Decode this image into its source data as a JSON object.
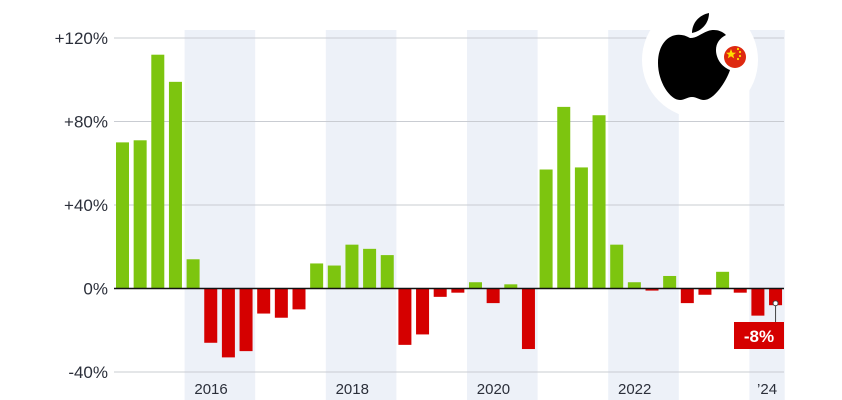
{
  "chart_data": {
    "type": "bar",
    "title": "",
    "xlabel": "",
    "ylabel": "",
    "ylim": [
      -40,
      120
    ],
    "yticks": [
      -40,
      0,
      40,
      80,
      120
    ],
    "ytick_labels": [
      "-40%",
      "0%",
      "+40%",
      "+80%",
      "+120%"
    ],
    "x_labels": [
      {
        "label": "2016",
        "index": 5.5
      },
      {
        "label": "2018",
        "index": 13.5
      },
      {
        "label": "2020",
        "index": 21.5
      },
      {
        "label": "2022",
        "index": 29.5
      },
      {
        "label": "’24",
        "index": 37
      }
    ],
    "shaded_years": [
      [
        4,
        8
      ],
      [
        12,
        16
      ],
      [
        20,
        24
      ],
      [
        28,
        32
      ],
      [
        36,
        38
      ]
    ],
    "values": [
      70,
      71,
      112,
      99,
      14,
      -26,
      -33,
      -30,
      -12,
      -14,
      -10,
      12,
      11,
      21,
      19,
      16,
      -27,
      -22,
      -4,
      -2,
      3,
      -7,
      2,
      -29,
      57,
      87,
      58,
      83,
      21,
      3,
      -1,
      6,
      -7,
      -3,
      8,
      -2,
      -13,
      -8
    ],
    "positive_color": "#7dc50f",
    "negative_color": "#d50000",
    "band_color": "#edf1f8",
    "grid": true,
    "callout": {
      "label": "-8%",
      "value": -8,
      "index": 37,
      "color": "#d50000"
    },
    "logo": {
      "icon": "apple-logo-icon",
      "badge": "china-flag-icon",
      "flag_color": "#de2910",
      "star_color": "#ffde00"
    }
  }
}
